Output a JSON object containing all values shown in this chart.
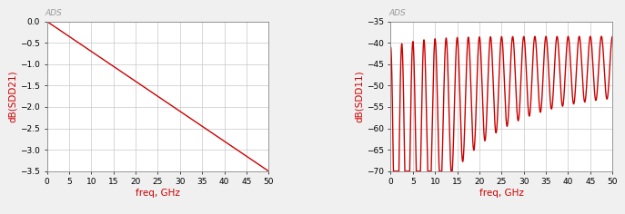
{
  "chart1": {
    "title": "ADS",
    "ylabel": "dB(SDD21)",
    "xlabel": "freq, GHz",
    "xlim": [
      0,
      50
    ],
    "ylim": [
      -3.5,
      0.0
    ],
    "yticks": [
      0.0,
      -0.5,
      -1.0,
      -1.5,
      -2.0,
      -2.5,
      -3.0,
      -3.5
    ],
    "xticks": [
      0,
      5,
      10,
      15,
      20,
      25,
      30,
      35,
      40,
      45,
      50
    ],
    "line_color": "#cc0000",
    "line_width": 1.0,
    "grid_color": "#c8c8c8",
    "bg_color": "#ffffff",
    "label_color": "#cc0000",
    "title_color": "#999999",
    "tick_labelsize": 6.5,
    "axis_label_fontsize": 7.5
  },
  "chart2": {
    "title": "ADS",
    "ylabel": "dB(SDD11)",
    "xlabel": "freq, GHz",
    "xlim": [
      0,
      50
    ],
    "ylim": [
      -70,
      -35
    ],
    "yticks": [
      -70,
      -65,
      -60,
      -55,
      -50,
      -45,
      -40,
      -35
    ],
    "xticks": [
      0,
      5,
      10,
      15,
      20,
      25,
      30,
      35,
      40,
      45,
      50
    ],
    "line_color": "#cc0000",
    "line_width": 1.0,
    "grid_color": "#c8c8c8",
    "bg_color": "#ffffff",
    "label_color": "#cc0000",
    "title_color": "#999999",
    "tick_labelsize": 6.5,
    "axis_label_fontsize": 7.5,
    "osc_period_ghz": 2.5,
    "base_level": -42.0,
    "null_depth_a": 25.0,
    "null_depth_decay": 0.07,
    "null_depth_min": 6.5,
    "upper_peak": -38.5
  }
}
